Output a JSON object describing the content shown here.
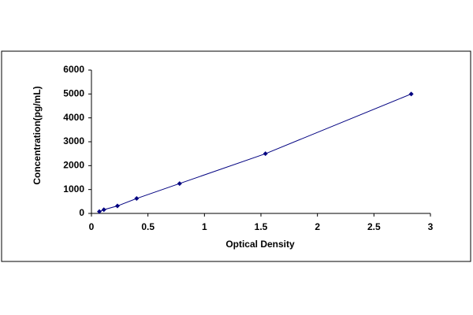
{
  "chart_data": {
    "type": "scatter",
    "x_label": "Optical Density",
    "y_label": "Concentration(pg/mL)",
    "series": [
      {
        "color": "#000080",
        "x": [
          0.07,
          0.11,
          0.23,
          0.4,
          0.78,
          1.54,
          2.83
        ],
        "values": [
          78,
          156,
          312,
          625,
          1250,
          2500,
          5000
        ]
      }
    ],
    "xlim": [
      0,
      3
    ],
    "xticks": [
      0,
      0.5,
      1,
      1.5,
      2,
      2.5,
      3
    ],
    "ylim": [
      0,
      6000
    ],
    "yticks": [
      0,
      1000,
      2000,
      3000,
      4000,
      5000,
      6000
    ],
    "grid": false,
    "connect_points": true
  }
}
